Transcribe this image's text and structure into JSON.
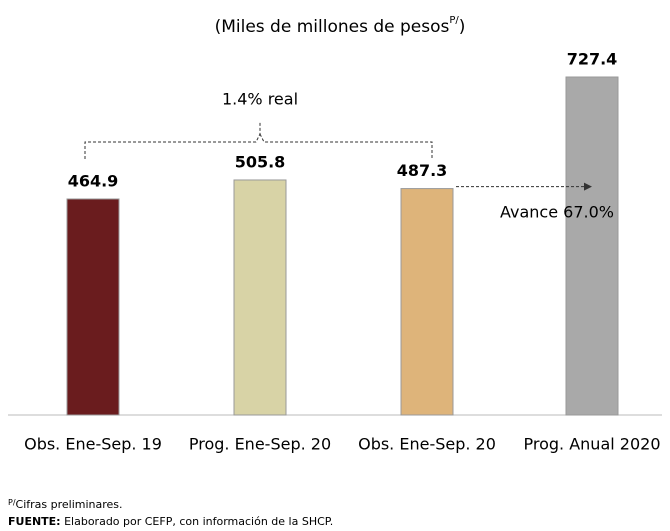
{
  "chart_data": {
    "type": "bar",
    "title": "(Miles de millones de pesos",
    "title_superscript": "P/",
    "title_suffix": ")",
    "categories": [
      "Obs. Ene-Sep. 19",
      "Prog. Ene-Sep. 20",
      "Obs. Ene-Sep. 20",
      "Prog. Anual 2020"
    ],
    "values": [
      464.9,
      505.8,
      487.3,
      727.4
    ],
    "colors": [
      "#6a1c1e",
      "#d8d3a6",
      "#deb47a",
      "#a9a9a9"
    ],
    "annotations": [
      "1.4% real",
      "Avance 67.0%"
    ],
    "footnotes": {
      "note_superscript": "P/",
      "note": "Cifras preliminares.",
      "source_label": "FUENTE:",
      "source": " Elaborado por CEFP, con información de la SHCP."
    }
  }
}
